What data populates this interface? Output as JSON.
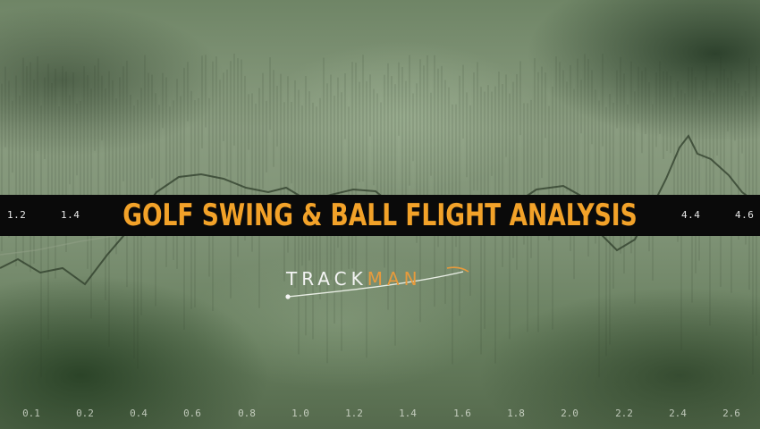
{
  "title": "GOLF SWING & BALL FLIGHT ANALYSIS",
  "logo": {
    "part_a": "TRACK",
    "part_b": "MAN",
    "colors": {
      "part_a": "#f4f4f4",
      "part_b": "#e79a3c"
    }
  },
  "band_ticks": {
    "left": [
      "1.2",
      "1.4"
    ],
    "right": [
      "4.4",
      "4.6"
    ]
  },
  "bottom_ticks": [
    "0.1",
    "0.2",
    "0.4",
    "0.6",
    "0.8",
    "1.0",
    "1.2",
    "1.4",
    "1.6",
    "1.8",
    "2.0",
    "2.2",
    "2.4",
    "2.6"
  ],
  "colors": {
    "title": "#f2a229",
    "band": "#0a0a0a",
    "background": "#7e9275"
  }
}
